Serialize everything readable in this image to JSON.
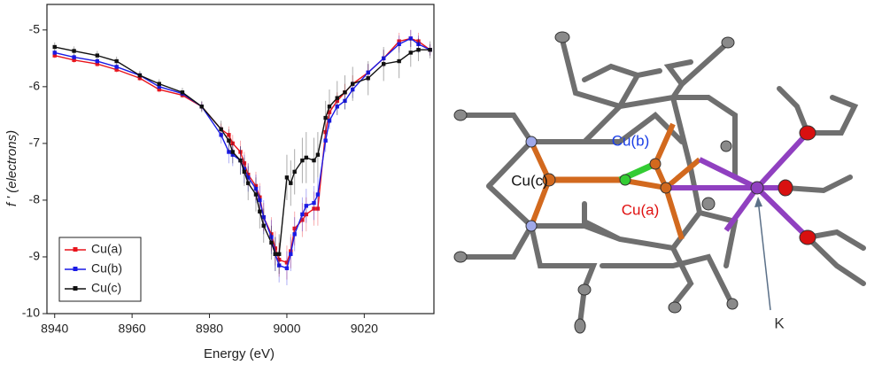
{
  "chart_data": {
    "type": "line",
    "xlabel": "Energy (eV)",
    "ylabel": "f ' (electrons)",
    "xlim": [
      8938,
      9038
    ],
    "ylim": [
      -10,
      -4.55
    ],
    "xticks": [
      8940,
      8960,
      8980,
      9000,
      9020
    ],
    "yticks": [
      -10,
      -9,
      -8,
      -7,
      -6,
      -5
    ],
    "legend": "lower left",
    "x": [
      8940,
      8945,
      8951,
      8956,
      8962,
      8967,
      8973,
      8978,
      8983,
      8985,
      8986,
      8988,
      8989,
      8990,
      8992,
      8993,
      8994,
      8996,
      8997,
      8998,
      9000,
      9001,
      9002,
      9004,
      9005,
      9007,
      9008,
      9010,
      9011,
      9013,
      9015,
      9017,
      9021,
      9025,
      9029,
      9032,
      9034,
      9037
    ],
    "series": [
      {
        "name": "Cu(a)",
        "color": "#e8141c",
        "values": [
          -5.45,
          -5.53,
          -5.6,
          -5.7,
          -5.85,
          -6.05,
          -6.15,
          -6.35,
          -6.75,
          -6.85,
          -7.0,
          -7.15,
          -7.35,
          -7.55,
          -7.75,
          -7.95,
          -8.3,
          -8.6,
          -8.85,
          -9.05,
          -9.1,
          -8.9,
          -8.5,
          -8.35,
          -8.25,
          -8.15,
          -8.15,
          -6.8,
          -6.45,
          -6.25,
          -6.1,
          -5.95,
          -5.75,
          -5.5,
          -5.2,
          -5.15,
          -5.2,
          -5.35
        ],
        "errors": [
          0.05,
          0.05,
          0.05,
          0.05,
          0.05,
          0.05,
          0.05,
          0.08,
          0.1,
          0.15,
          0.15,
          0.2,
          0.2,
          0.2,
          0.25,
          0.25,
          0.25,
          0.3,
          0.3,
          0.3,
          0.3,
          0.3,
          0.3,
          0.3,
          0.3,
          0.3,
          0.3,
          0.2,
          0.15,
          0.15,
          0.15,
          0.15,
          0.15,
          0.15,
          0.15,
          0.15,
          0.15,
          0.1
        ]
      },
      {
        "name": "Cu(b)",
        "color": "#1a1ae6",
        "values": [
          -5.4,
          -5.48,
          -5.55,
          -5.65,
          -5.8,
          -6.0,
          -6.12,
          -6.35,
          -6.85,
          -7.15,
          -7.2,
          -7.3,
          -7.45,
          -7.6,
          -7.8,
          -8.0,
          -8.3,
          -8.65,
          -8.95,
          -9.15,
          -9.2,
          -8.95,
          -8.6,
          -8.25,
          -8.1,
          -8.05,
          -7.9,
          -6.95,
          -6.6,
          -6.35,
          -6.25,
          -6.05,
          -5.75,
          -5.5,
          -5.25,
          -5.15,
          -5.25,
          -5.35
        ],
        "errors": [
          0.05,
          0.05,
          0.05,
          0.05,
          0.05,
          0.05,
          0.05,
          0.08,
          0.15,
          0.2,
          0.2,
          0.25,
          0.25,
          0.25,
          0.25,
          0.25,
          0.3,
          0.3,
          0.3,
          0.3,
          0.3,
          0.3,
          0.3,
          0.3,
          0.3,
          0.3,
          0.3,
          0.2,
          0.15,
          0.15,
          0.15,
          0.15,
          0.15,
          0.15,
          0.15,
          0.15,
          0.15,
          0.1
        ]
      },
      {
        "name": "Cu(c)",
        "color": "#111111",
        "values": [
          -5.3,
          -5.37,
          -5.45,
          -5.55,
          -5.8,
          -5.95,
          -6.1,
          -6.35,
          -6.75,
          -6.95,
          -7.15,
          -7.3,
          -7.5,
          -7.7,
          -7.9,
          -8.2,
          -8.45,
          -8.75,
          -8.95,
          -8.95,
          -7.6,
          -7.7,
          -7.5,
          -7.3,
          -7.25,
          -7.3,
          -7.2,
          -6.55,
          -6.35,
          -6.2,
          -6.1,
          -5.95,
          -5.85,
          -5.6,
          -5.55,
          -5.4,
          -5.35,
          -5.35
        ],
        "errors": [
          0.08,
          0.08,
          0.08,
          0.08,
          0.08,
          0.08,
          0.08,
          0.1,
          0.15,
          0.2,
          0.2,
          0.25,
          0.25,
          0.3,
          0.3,
          0.3,
          0.3,
          0.3,
          0.3,
          0.35,
          0.4,
          0.4,
          0.4,
          0.4,
          0.45,
          0.4,
          0.4,
          0.3,
          0.3,
          0.3,
          0.3,
          0.3,
          0.3,
          0.3,
          0.3,
          0.25,
          0.2,
          0.15
        ]
      }
    ]
  },
  "structure": {
    "labels": [
      "Cu(c)",
      "Cu(b)",
      "Cu(a)",
      "K"
    ]
  }
}
